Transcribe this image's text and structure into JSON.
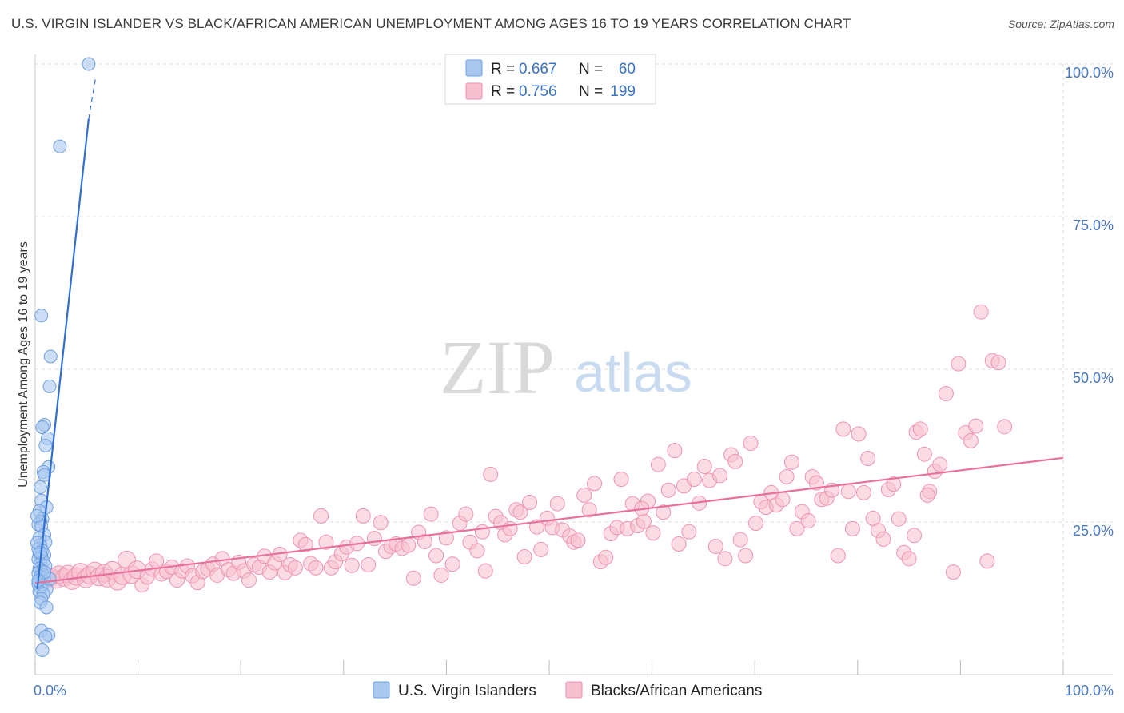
{
  "header": {
    "title": "U.S. VIRGIN ISLANDER VS BLACK/AFRICAN AMERICAN UNEMPLOYMENT AMONG AGES 16 TO 19 YEARS CORRELATION CHART",
    "source": "Source: ZipAtlas.com"
  },
  "watermark": {
    "zip": "ZIP",
    "atlas": "atlas"
  },
  "legend": {
    "rows": [
      {
        "r_label": "R =",
        "r_value": "0.667",
        "n_label": "N =",
        "n_value": "60",
        "color": "#a9c8f0"
      },
      {
        "r_label": "R =",
        "r_value": "0.756",
        "n_label": "N =",
        "n_value": "199",
        "color": "#f6b8cc"
      }
    ]
  },
  "colors": {
    "blue_fill": "#a9c8f0",
    "blue_stroke": "#6f9fe0",
    "blue_line": "#2f6fcf",
    "pink_fill": "#f7bfd0",
    "pink_stroke": "#ee93b0",
    "pink_line": "#e8709a",
    "grid": "#dddddd",
    "tick_text": "#4a78c2"
  },
  "chart_data": {
    "type": "scatter",
    "title": "U.S. VIRGIN ISLANDER VS BLACK/AFRICAN AMERICAN UNEMPLOYMENT AMONG AGES 16 TO 19 YEARS CORRELATION CHART",
    "xlabel": "",
    "ylabel": "Unemployment Among Ages 16 to 19 years",
    "xlim": [
      0,
      100
    ],
    "ylim": [
      0,
      100
    ],
    "x_tick_labels": [
      "0.0%",
      "100.0%"
    ],
    "y_tick_labels": [
      "25.0%",
      "50.0%",
      "75.0%",
      "100.0%"
    ],
    "y_ticks": [
      25,
      50,
      75,
      100
    ],
    "series": [
      {
        "name": "U.S. Virgin Islanders",
        "r": 0.667,
        "n": 60,
        "trend": {
          "x0": 0.2,
          "y0": 14,
          "x1": 5.2,
          "y1": 91,
          "dash_to_x": 5.9,
          "dash_to_y": 98
        },
        "points": [
          [
            5.2,
            100
          ],
          [
            2.4,
            86.5
          ],
          [
            0.6,
            58.8
          ],
          [
            1.5,
            52.1
          ],
          [
            1.4,
            47.2
          ],
          [
            0.9,
            40.9
          ],
          [
            0.7,
            40.5
          ],
          [
            1.2,
            38.7
          ],
          [
            1.0,
            37.5
          ],
          [
            1.3,
            34.0
          ],
          [
            0.8,
            33.2
          ],
          [
            0.9,
            32.7
          ],
          [
            0.5,
            30.7
          ],
          [
            0.6,
            28.5
          ],
          [
            1.1,
            27.4
          ],
          [
            0.4,
            26.8
          ],
          [
            0.7,
            25.5
          ],
          [
            0.5,
            25.1
          ],
          [
            0.3,
            24.6
          ],
          [
            0.6,
            24.3
          ],
          [
            0.9,
            22.9
          ],
          [
            0.4,
            22.4
          ],
          [
            1.0,
            21.7
          ],
          [
            0.5,
            21.2
          ],
          [
            0.3,
            20.6
          ],
          [
            0.7,
            20.3
          ],
          [
            0.4,
            19.8
          ],
          [
            0.9,
            19.6
          ],
          [
            0.6,
            19.3
          ],
          [
            0.3,
            18.9
          ],
          [
            0.8,
            18.5
          ],
          [
            0.5,
            18.2
          ],
          [
            1.0,
            17.8
          ],
          [
            0.4,
            17.4
          ],
          [
            0.6,
            17.0
          ],
          [
            0.3,
            16.6
          ],
          [
            0.8,
            16.3
          ],
          [
            0.5,
            16.1
          ],
          [
            0.9,
            15.8
          ],
          [
            0.4,
            15.5
          ],
          [
            0.6,
            15.2
          ],
          [
            0.3,
            14.9
          ],
          [
            0.7,
            14.6
          ],
          [
            0.5,
            14.3
          ],
          [
            1.1,
            14.0
          ],
          [
            0.4,
            13.6
          ],
          [
            0.8,
            13.2
          ],
          [
            0.6,
            12.4
          ],
          [
            0.5,
            11.8
          ],
          [
            1.1,
            11.0
          ],
          [
            0.6,
            7.2
          ],
          [
            1.3,
            6.5
          ],
          [
            1.0,
            6.2
          ],
          [
            0.7,
            4.0
          ],
          [
            0.2,
            21.6
          ],
          [
            1.4,
            15.7
          ],
          [
            0.9,
            16.8
          ],
          [
            0.2,
            26.0
          ],
          [
            0.3,
            15.4
          ],
          [
            0.5,
            20.0
          ]
        ]
      },
      {
        "name": "Blacks/African Americans",
        "r": 0.756,
        "n": 199,
        "trend": {
          "x0": 0,
          "y0": 15,
          "x1": 100,
          "y1": 35.5
        },
        "points": [
          [
            0.8,
            16.2
          ],
          [
            1.1,
            15.8
          ],
          [
            1.5,
            16.0
          ],
          [
            2.0,
            15.6
          ],
          [
            2.3,
            16.4
          ],
          [
            2.8,
            15.9
          ],
          [
            3.2,
            16.5
          ],
          [
            3.6,
            15.4
          ],
          [
            4.0,
            16.1
          ],
          [
            4.4,
            16.8
          ],
          [
            4.9,
            15.7
          ],
          [
            5.3,
            16.3
          ],
          [
            5.8,
            17.0
          ],
          [
            6.2,
            16.0
          ],
          [
            6.7,
            16.6
          ],
          [
            7.0,
            15.8
          ],
          [
            7.5,
            17.1
          ],
          [
            8.0,
            15.3
          ],
          [
            8.5,
            16.2
          ],
          [
            8.9,
            18.8
          ],
          [
            9.4,
            16.4
          ],
          [
            9.9,
            17.2
          ],
          [
            10.4,
            14.7
          ],
          [
            10.9,
            16.0
          ],
          [
            11.4,
            17.3
          ],
          [
            11.8,
            18.6
          ],
          [
            12.3,
            16.5
          ],
          [
            12.8,
            16.9
          ],
          [
            13.3,
            17.6
          ],
          [
            13.8,
            15.5
          ],
          [
            14.3,
            17.0
          ],
          [
            14.8,
            17.8
          ],
          [
            15.3,
            16.2
          ],
          [
            15.8,
            15.1
          ],
          [
            16.3,
            16.9
          ],
          [
            16.8,
            17.3
          ],
          [
            17.3,
            18.1
          ],
          [
            17.7,
            16.3
          ],
          [
            18.2,
            19.0
          ],
          [
            18.8,
            17.2
          ],
          [
            19.3,
            16.6
          ],
          [
            19.8,
            18.4
          ],
          [
            20.3,
            17.0
          ],
          [
            20.8,
            15.5
          ],
          [
            21.3,
            18.0
          ],
          [
            21.8,
            17.6
          ],
          [
            22.3,
            19.4
          ],
          [
            22.8,
            16.8
          ],
          [
            23.3,
            18.3
          ],
          [
            23.8,
            19.7
          ],
          [
            24.3,
            16.7
          ],
          [
            24.8,
            18.0
          ],
          [
            25.3,
            17.5
          ],
          [
            25.8,
            22.0
          ],
          [
            26.3,
            21.3
          ],
          [
            26.8,
            18.2
          ],
          [
            27.3,
            17.5
          ],
          [
            27.8,
            26.0
          ],
          [
            28.3,
            21.7
          ],
          [
            28.8,
            17.5
          ],
          [
            29.2,
            18.5
          ],
          [
            29.8,
            19.8
          ],
          [
            30.3,
            20.9
          ],
          [
            30.8,
            17.9
          ],
          [
            31.3,
            21.5
          ],
          [
            31.9,
            26.0
          ],
          [
            32.4,
            18.0
          ],
          [
            33.0,
            22.3
          ],
          [
            33.6,
            24.9
          ],
          [
            34.1,
            20.2
          ],
          [
            34.6,
            21.0
          ],
          [
            35.1,
            21.4
          ],
          [
            35.7,
            20.7
          ],
          [
            36.3,
            21.2
          ],
          [
            36.8,
            15.8
          ],
          [
            37.3,
            23.3
          ],
          [
            37.9,
            21.8
          ],
          [
            38.5,
            26.3
          ],
          [
            39.0,
            19.5
          ],
          [
            39.5,
            16.3
          ],
          [
            40.0,
            22.4
          ],
          [
            40.6,
            18.1
          ],
          [
            41.3,
            24.8
          ],
          [
            41.9,
            26.3
          ],
          [
            42.3,
            21.7
          ],
          [
            43.0,
            20.3
          ],
          [
            43.5,
            23.4
          ],
          [
            43.8,
            17.0
          ],
          [
            44.3,
            32.8
          ],
          [
            44.8,
            25.9
          ],
          [
            45.3,
            24.9
          ],
          [
            45.7,
            22.9
          ],
          [
            46.2,
            23.9
          ],
          [
            46.8,
            27.0
          ],
          [
            47.2,
            26.6
          ],
          [
            47.6,
            19.3
          ],
          [
            48.1,
            28.2
          ],
          [
            48.8,
            24.2
          ],
          [
            49.2,
            20.5
          ],
          [
            49.8,
            25.6
          ],
          [
            50.3,
            24.1
          ],
          [
            50.8,
            28.0
          ],
          [
            51.3,
            23.7
          ],
          [
            52.0,
            22.7
          ],
          [
            52.4,
            21.7
          ],
          [
            52.8,
            22.0
          ],
          [
            53.4,
            29.4
          ],
          [
            53.9,
            27.0
          ],
          [
            54.4,
            31.3
          ],
          [
            55.0,
            18.5
          ],
          [
            55.5,
            19.2
          ],
          [
            56.0,
            23.1
          ],
          [
            56.6,
            24.1
          ],
          [
            57.0,
            32.0
          ],
          [
            57.6,
            23.9
          ],
          [
            58.1,
            28.0
          ],
          [
            58.6,
            24.4
          ],
          [
            59.2,
            25.1
          ],
          [
            59.6,
            28.4
          ],
          [
            60.1,
            23.2
          ],
          [
            60.6,
            34.4
          ],
          [
            61.1,
            26.6
          ],
          [
            61.6,
            30.2
          ],
          [
            62.2,
            36.7
          ],
          [
            62.6,
            21.4
          ],
          [
            63.1,
            30.9
          ],
          [
            63.6,
            23.4
          ],
          [
            64.1,
            32.0
          ],
          [
            64.6,
            28.1
          ],
          [
            65.1,
            34.1
          ],
          [
            65.6,
            31.8
          ],
          [
            66.2,
            21.0
          ],
          [
            66.6,
            32.6
          ],
          [
            67.1,
            19.0
          ],
          [
            67.7,
            36.0
          ],
          [
            68.1,
            34.9
          ],
          [
            68.6,
            22.1
          ],
          [
            69.1,
            19.5
          ],
          [
            69.6,
            37.9
          ],
          [
            70.1,
            24.8
          ],
          [
            70.6,
            28.3
          ],
          [
            71.1,
            27.4
          ],
          [
            71.6,
            29.8
          ],
          [
            72.1,
            27.8
          ],
          [
            72.7,
            28.7
          ],
          [
            73.1,
            32.4
          ],
          [
            73.6,
            34.8
          ],
          [
            74.1,
            23.9
          ],
          [
            74.6,
            26.7
          ],
          [
            75.2,
            25.2
          ],
          [
            75.6,
            32.4
          ],
          [
            76.0,
            31.4
          ],
          [
            76.5,
            28.7
          ],
          [
            77.0,
            28.9
          ],
          [
            77.5,
            30.2
          ],
          [
            78.1,
            19.5
          ],
          [
            78.6,
            40.2
          ],
          [
            79.1,
            30.0
          ],
          [
            79.5,
            23.9
          ],
          [
            80.1,
            39.4
          ],
          [
            80.6,
            29.8
          ],
          [
            81.0,
            35.4
          ],
          [
            81.5,
            25.6
          ],
          [
            82.0,
            23.6
          ],
          [
            82.5,
            22.2
          ],
          [
            83.0,
            30.3
          ],
          [
            83.5,
            31.2
          ],
          [
            84.0,
            25.5
          ],
          [
            84.5,
            20.0
          ],
          [
            85.0,
            19.0
          ],
          [
            85.5,
            22.8
          ],
          [
            85.7,
            39.7
          ],
          [
            86.1,
            40.2
          ],
          [
            86.5,
            36.1
          ],
          [
            87.0,
            30.0
          ],
          [
            87.5,
            33.3
          ],
          [
            88.0,
            34.4
          ],
          [
            88.6,
            46.0
          ],
          [
            89.3,
            16.8
          ],
          [
            89.8,
            50.9
          ],
          [
            90.5,
            39.6
          ],
          [
            91.0,
            38.3
          ],
          [
            91.5,
            40.7
          ],
          [
            92.0,
            59.4
          ],
          [
            92.6,
            18.6
          ],
          [
            93.1,
            51.4
          ],
          [
            93.7,
            51.1
          ],
          [
            94.3,
            40.6
          ],
          [
            86.8,
            29.4
          ],
          [
            59.0,
            27.2
          ]
        ]
      }
    ]
  },
  "bottom_legend": {
    "items": [
      {
        "label": "U.S. Virgin Islanders",
        "color": "#a9c8f0"
      },
      {
        "label": "Blacks/African Americans",
        "color": "#f6b8cc"
      }
    ]
  }
}
